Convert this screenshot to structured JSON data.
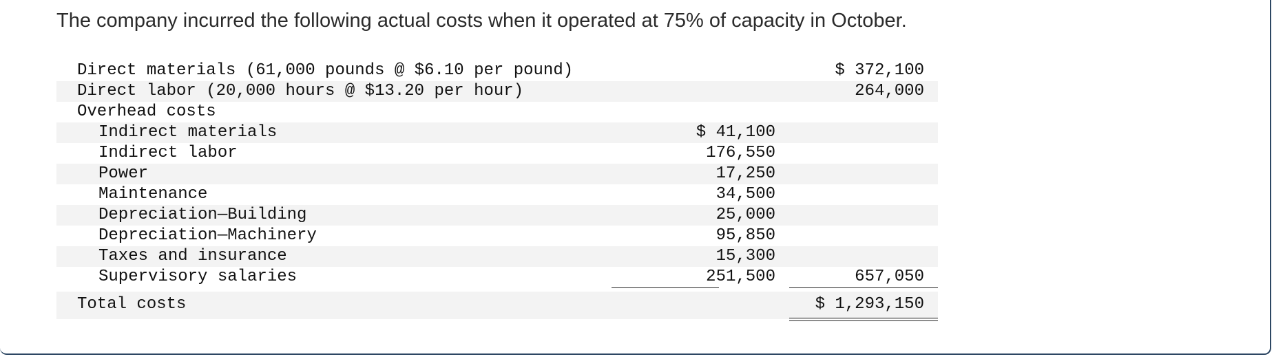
{
  "intro_text": "The company incurred the following actual costs when it operated at 75% of capacity in October.",
  "rows": [
    {
      "label": "Direct materials (61,000 pounds @ $6.10 per pound)",
      "c1": "",
      "c2": "$ 372,100",
      "indent": false,
      "shade": false
    },
    {
      "label": "Direct labor (20,000 hours @ $13.20 per hour)",
      "c1": "",
      "c2": "264,000",
      "indent": false,
      "shade": true
    },
    {
      "label": "Overhead costs",
      "c1": "",
      "c2": "",
      "indent": false,
      "shade": false
    },
    {
      "label": "Indirect materials",
      "c1": "$ 41,100",
      "c2": "",
      "indent": true,
      "shade": true
    },
    {
      "label": "Indirect labor",
      "c1": "176,550",
      "c2": "",
      "indent": true,
      "shade": false
    },
    {
      "label": "Power",
      "c1": "17,250",
      "c2": "",
      "indent": true,
      "shade": true
    },
    {
      "label": "Maintenance",
      "c1": "34,500",
      "c2": "",
      "indent": true,
      "shade": false
    },
    {
      "label": "Depreciation—Building",
      "c1": "25,000",
      "c2": "",
      "indent": true,
      "shade": true
    },
    {
      "label": "Depreciation—Machinery",
      "c1": "95,850",
      "c2": "",
      "indent": true,
      "shade": false
    },
    {
      "label": "Taxes and insurance",
      "c1": "15,300",
      "c2": "",
      "indent": true,
      "shade": true
    },
    {
      "label": "Supervisory salaries",
      "c1": "251,500",
      "c2": "657,050",
      "indent": true,
      "shade": false
    }
  ],
  "total": {
    "label": "Total costs",
    "value": "$ 1,293,150"
  }
}
